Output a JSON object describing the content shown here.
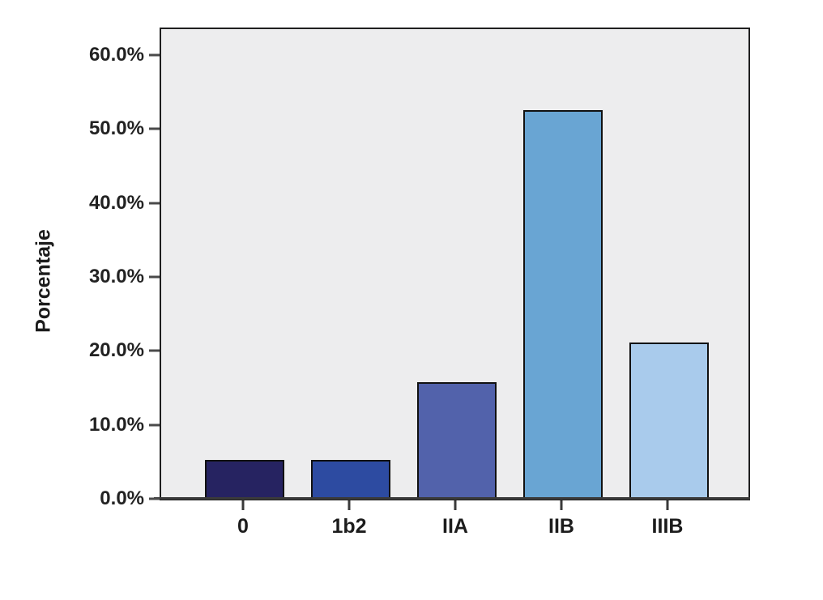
{
  "figure": {
    "ylabel": "Porcentaje",
    "background_color": "#ffffff",
    "plot_background_color": "#ededee",
    "frame_color": "#1f1f1f",
    "axis_line_color": "#3a3a3a",
    "text_color": "#1c1c1c"
  },
  "chart_data": {
    "type": "bar",
    "title": "",
    "xlabel": "",
    "ylabel": "Porcentaje",
    "categories": [
      "0",
      "1b2",
      "IIA",
      "IIB",
      "IIIB"
    ],
    "values": [
      5.3,
      5.3,
      15.8,
      52.6,
      21.1
    ],
    "value_unit": "%",
    "ylim": [
      0,
      63.5
    ],
    "yticks": [
      0,
      10,
      20,
      30,
      40,
      50,
      60
    ],
    "ytick_labels": [
      "0.0%",
      "10.0%",
      "20.0%",
      "30.0%",
      "40.0%",
      "50.0%",
      "60.0%"
    ],
    "bar_colors": [
      "#262361",
      "#2d4ba1",
      "#5262ab",
      "#69a5d3",
      "#a9cbec"
    ],
    "bar_border_color": "#111111",
    "grid": false,
    "legend": null
  }
}
